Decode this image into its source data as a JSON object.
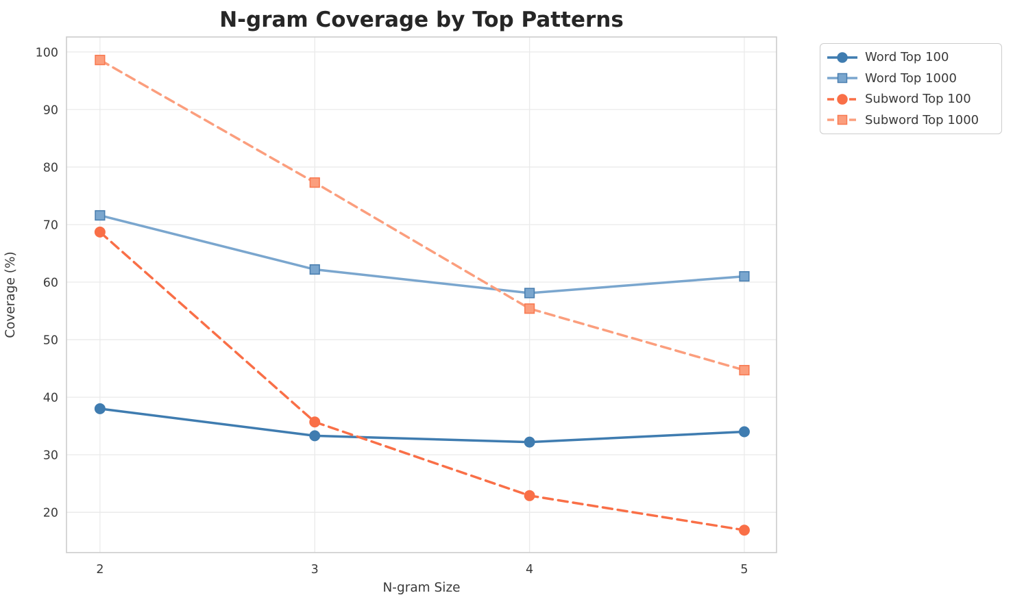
{
  "figure": {
    "background": "#ffffff"
  },
  "chart_data": {
    "type": "line",
    "title": "N-gram Coverage by Top Patterns",
    "xlabel": "N-gram Size",
    "ylabel": "Coverage (%)",
    "x": [
      2,
      3,
      4,
      5
    ],
    "xticks": [
      2,
      3,
      4,
      5
    ],
    "yticks": [
      20,
      30,
      40,
      50,
      60,
      70,
      80,
      90,
      100
    ],
    "xlim": [
      1.844,
      5.15
    ],
    "ylim": [
      13,
      102.6
    ],
    "grid": true,
    "legend_position": "outside-upper-right",
    "series": [
      {
        "name": "Word Top 100",
        "values": [
          38.0,
          33.3,
          32.2,
          34.0
        ],
        "color": "#3f7cb0",
        "edge_color": "#3f7cb0",
        "line": "solid",
        "marker": "circle"
      },
      {
        "name": "Word Top 1000",
        "values": [
          71.6,
          62.2,
          58.1,
          61.0
        ],
        "color": "#7aa6ce",
        "edge_color": "#4a7fb0",
        "line": "solid",
        "marker": "square"
      },
      {
        "name": "Subword Top 100",
        "values": [
          68.7,
          35.7,
          22.9,
          16.9
        ],
        "color": "#f96f47",
        "edge_color": "#f96f47",
        "line": "dashed",
        "marker": "circle"
      },
      {
        "name": "Subword Top 1000",
        "values": [
          98.6,
          77.3,
          55.4,
          44.7
        ],
        "color": "#fb9e7d",
        "edge_color": "#f87a52",
        "line": "dashed",
        "marker": "square"
      }
    ],
    "styles": {
      "grid_color": "#eaeaea",
      "spine_color": "#cccccc",
      "tick_color": "#3b3b3b",
      "label_color": "#3a3a3a",
      "title_color": "#262626"
    }
  }
}
